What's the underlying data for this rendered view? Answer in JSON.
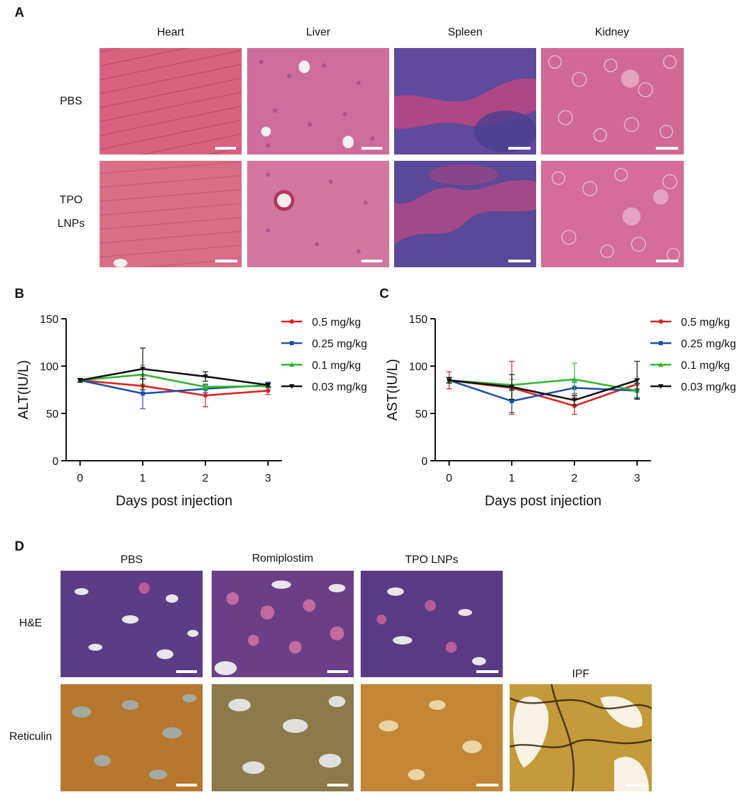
{
  "panel_a": {
    "letter": "A",
    "columns": [
      "Heart",
      "Liver",
      "Spleen",
      "Kidney"
    ],
    "rows": [
      [
        "PBS"
      ],
      [
        "TPO",
        "LNPs"
      ]
    ]
  },
  "panel_d": {
    "letter": "D",
    "columns": [
      "PBS",
      "Romiplostim",
      "TPO LNPs"
    ],
    "extra_column": "IPF",
    "rows": [
      "H&E",
      "Reticulin"
    ]
  },
  "chart_data": [
    {
      "panel": "B",
      "type": "line",
      "xlabel": "Days post injection",
      "ylabel": "ALT(IU/L)",
      "x": [
        0,
        1,
        2,
        3
      ],
      "xticks": [
        "0",
        "1",
        "2",
        "3"
      ],
      "ylim": [
        0,
        150
      ],
      "yticks": [
        "0",
        "50",
        "100",
        "150"
      ],
      "legend": "right",
      "series": [
        {
          "name": "0.5 mg/kg",
          "color": "#e02020",
          "marker": "circle",
          "values": [
            85,
            79,
            69,
            74
          ],
          "errors": [
            2,
            7,
            12,
            4
          ]
        },
        {
          "name": "0.25 mg/kg",
          "color": "#1f4fa8",
          "marker": "square",
          "values": [
            85,
            71,
            76,
            80
          ],
          "errors": [
            2,
            16,
            4,
            3
          ]
        },
        {
          "name": "0.1 mg/kg",
          "color": "#2eb82e",
          "marker": "triangle-up",
          "values": [
            85,
            91,
            78,
            79
          ],
          "errors": [
            2,
            10,
            3,
            2
          ]
        },
        {
          "name": "0.03 mg/kg",
          "color": "#111111",
          "marker": "triangle-down",
          "values": [
            85,
            97,
            89,
            80
          ],
          "errors": [
            2,
            22,
            5,
            2
          ]
        }
      ]
    },
    {
      "panel": "C",
      "type": "line",
      "xlabel": "Days post injection",
      "ylabel": "AST(IU/L)",
      "x": [
        0,
        1,
        2,
        3
      ],
      "xticks": [
        "0",
        "1",
        "2",
        "3"
      ],
      "ylim": [
        0,
        150
      ],
      "yticks": [
        "0",
        "50",
        "100",
        "150"
      ],
      "legend": "right",
      "series": [
        {
          "name": "0.5 mg/kg",
          "color": "#e02020",
          "marker": "circle",
          "values": [
            85,
            77,
            58,
            81
          ],
          "errors": [
            9,
            28,
            9,
            5
          ]
        },
        {
          "name": "0.25 mg/kg",
          "color": "#1f4fa8",
          "marker": "square",
          "values": [
            85,
            63,
            77,
            74
          ],
          "errors": [
            3,
            12,
            6,
            8
          ]
        },
        {
          "name": "0.1 mg/kg",
          "color": "#2eb82e",
          "marker": "triangle-up",
          "values": [
            85,
            80,
            86,
            74
          ],
          "errors": [
            3,
            6,
            17,
            7
          ]
        },
        {
          "name": "0.03 mg/kg",
          "color": "#111111",
          "marker": "triangle-down",
          "values": [
            85,
            78,
            64,
            85
          ],
          "errors": [
            3,
            13,
            5,
            20
          ]
        }
      ]
    }
  ]
}
